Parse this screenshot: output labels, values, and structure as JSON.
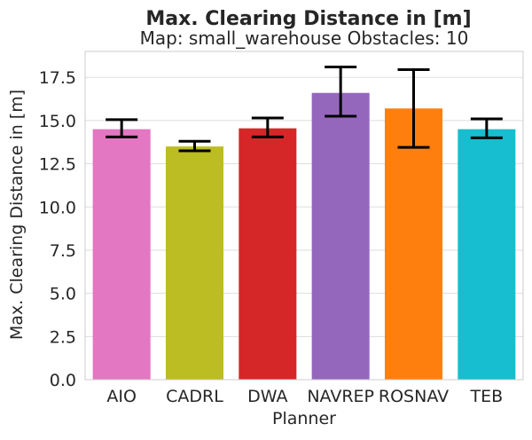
{
  "chart_data": {
    "type": "bar",
    "title": "Max. Clearing Distance in [m]",
    "subtitle": "Map: small_warehouse Obstacles: 10",
    "xlabel": "Planner",
    "ylabel": "Max. Clearing Distance in [m]",
    "categories": [
      "AIO",
      "CADRL",
      "DWA",
      "NAVREP",
      "ROSNAV",
      "TEB"
    ],
    "values": [
      14.5,
      13.5,
      14.55,
      16.6,
      15.7,
      14.5
    ],
    "error_low": [
      14.05,
      13.25,
      14.05,
      15.25,
      13.45,
      14.0
    ],
    "error_high": [
      15.05,
      13.8,
      15.15,
      18.1,
      17.95,
      15.1
    ],
    "colors": [
      "#e377c2",
      "#bcbd22",
      "#d62728",
      "#9467bd",
      "#ff7f0e",
      "#17becf"
    ],
    "ylim": [
      0,
      19
    ],
    "yticks": [
      "0.0",
      "2.5",
      "5.0",
      "7.5",
      "10.0",
      "12.5",
      "15.0",
      "17.5"
    ],
    "grid": "horizontal"
  }
}
